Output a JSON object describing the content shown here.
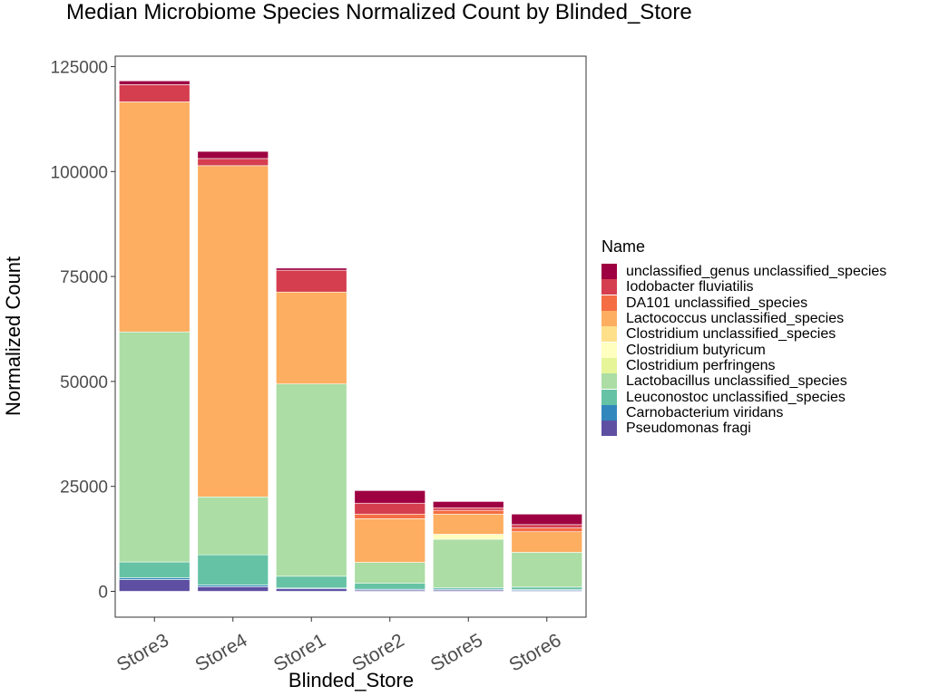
{
  "chart_data": {
    "type": "bar",
    "stacked": true,
    "title": "Median Microbiome Species Normalized Count by Blinded_Store",
    "xlabel": "Blinded_Store",
    "ylabel": "Normalized Count",
    "ylim": [
      -5800,
      127500
    ],
    "yticks": [
      0,
      25000,
      50000,
      75000,
      100000,
      125000
    ],
    "ytick_labels": [
      "0",
      "25000",
      "50000",
      "75000",
      "100000",
      "125000"
    ],
    "grid": false,
    "legend_title": "Name",
    "legend_position": "right",
    "categories": [
      "Store3",
      "Store4",
      "Store1",
      "Store2",
      "Store5",
      "Store6"
    ],
    "series": [
      {
        "name": "Pseudomonas fragi",
        "color": "#5E4FA2",
        "values": [
          2800,
          1100,
          600,
          300,
          300,
          200
        ]
      },
      {
        "name": "Carnobacterium viridans",
        "color": "#3288BD",
        "values": [
          400,
          400,
          200,
          200,
          200,
          200
        ]
      },
      {
        "name": "Leuconostoc unclassified_species",
        "color": "#66C2A5",
        "values": [
          3800,
          7200,
          2800,
          1400,
          400,
          600
        ]
      },
      {
        "name": "Lactobacillus unclassified_species",
        "color": "#ABDDA4",
        "values": [
          54800,
          13800,
          45800,
          5000,
          11500,
          8300
        ]
      },
      {
        "name": "Clostridium perfringens",
        "color": "#E6F598",
        "values": [
          0,
          0,
          0,
          0,
          0,
          0
        ]
      },
      {
        "name": "Clostridium butyricum",
        "color": "#FFFFBF",
        "values": [
          0,
          0,
          0,
          0,
          1200,
          0
        ]
      },
      {
        "name": "Clostridium unclassified_species",
        "color": "#FEE08B",
        "values": [
          0,
          0,
          0,
          0,
          0,
          0
        ]
      },
      {
        "name": "Lactococcus unclassified_species",
        "color": "#FDAE61",
        "values": [
          54800,
          78900,
          21900,
          10400,
          4800,
          4900
        ]
      },
      {
        "name": "DA101 unclassified_species",
        "color": "#F46D43",
        "values": [
          0,
          0,
          0,
          1100,
          900,
          900
        ]
      },
      {
        "name": "Iodobacter fluviatilis",
        "color": "#D53E4F",
        "values": [
          4100,
          1700,
          5200,
          2600,
          600,
          800
        ]
      },
      {
        "name": "unclassified_genus unclassified_species",
        "color": "#9E0142",
        "values": [
          900,
          1700,
          500,
          3000,
          1500,
          2500
        ]
      }
    ]
  }
}
